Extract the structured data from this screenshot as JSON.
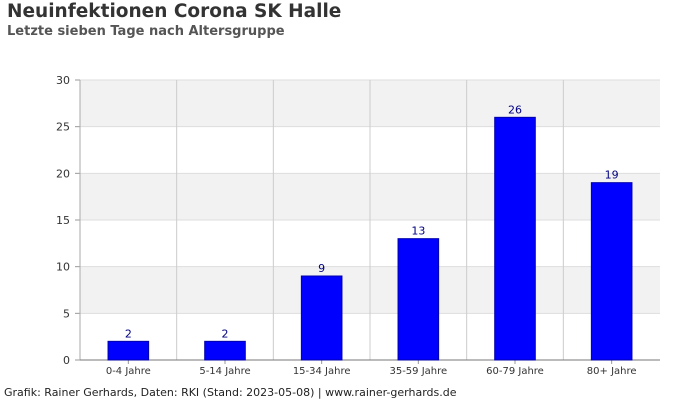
{
  "chart_data": {
    "type": "bar",
    "title": "Neuinfektionen Corona SK Halle",
    "subtitle": "Letzte sieben Tage nach Altersgruppe",
    "categories": [
      "0-4 Jahre",
      "5-14 Jahre",
      "15-34 Jahre",
      "35-59 Jahre",
      "60-79 Jahre",
      "80+ Jahre"
    ],
    "values": [
      2,
      2,
      9,
      13,
      26,
      19
    ],
    "xlabel": "",
    "ylabel": "",
    "ylim": [
      0,
      30
    ],
    "yticks": [
      0,
      5,
      10,
      15,
      20,
      25,
      30
    ],
    "grid": true,
    "bar_color": "#0000ff",
    "label_color": "#000080",
    "band_color": "#f2f2f2"
  },
  "footer": "Grafik: Rainer Gerhards, Daten: RKI (Stand: 2023-05-08) | www.rainer-gerhards.de"
}
